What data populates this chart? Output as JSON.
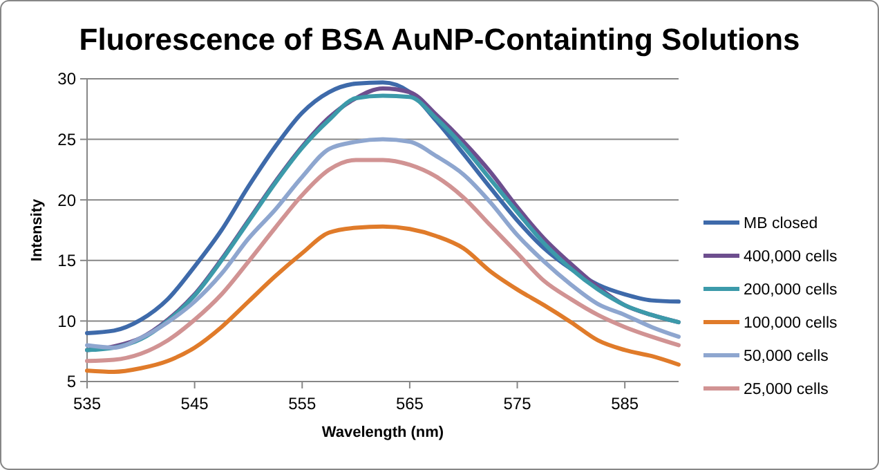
{
  "chart_data": {
    "type": "line",
    "title": "Fluorescence of BSA AuNP-Containting Solutions",
    "xlabel": "Wavelength (nm)",
    "ylabel": "Intensity",
    "x": [
      535,
      537.5,
      540,
      542.5,
      545,
      547.5,
      550,
      552.5,
      555,
      557.5,
      560,
      562.5,
      565,
      567.5,
      570,
      572.5,
      575,
      577.5,
      580,
      582.5,
      585,
      587.5,
      590
    ],
    "series": [
      {
        "name": "MB closed",
        "color": "#3e6aaa",
        "values": [
          9.0,
          9.2,
          10.1,
          11.8,
          14.5,
          17.5,
          21.1,
          24.4,
          27.2,
          28.9,
          29.6,
          29.7,
          28.9,
          26.5,
          23.8,
          21.0,
          18.3,
          16.0,
          14.3,
          13.0,
          12.2,
          11.7,
          11.6
        ]
      },
      {
        "name": "400,000 cells",
        "color": "#6d4e8e",
        "values": [
          7.6,
          7.9,
          8.6,
          10.1,
          12.2,
          15.1,
          18.3,
          21.5,
          24.4,
          26.8,
          28.4,
          29.2,
          28.9,
          27.0,
          24.8,
          22.3,
          19.4,
          16.8,
          14.7,
          12.8,
          11.3,
          10.5,
          9.9
        ]
      },
      {
        "name": "200,000 cells",
        "color": "#3c9aaa",
        "values": [
          7.6,
          7.8,
          8.5,
          10.0,
          12.1,
          15.0,
          18.2,
          21.4,
          24.3,
          26.6,
          28.4,
          28.6,
          28.5,
          26.7,
          24.4,
          21.7,
          19.0,
          16.4,
          14.3,
          12.6,
          11.3,
          10.5,
          9.9
        ]
      },
      {
        "name": "100,000 cells",
        "color": "#e07b2a",
        "values": [
          5.9,
          5.8,
          6.1,
          6.7,
          7.8,
          9.5,
          11.6,
          13.7,
          15.6,
          17.3,
          17.7,
          17.8,
          17.6,
          17.0,
          16.0,
          14.1,
          12.6,
          11.3,
          9.9,
          8.4,
          7.6,
          7.1,
          6.4
        ]
      },
      {
        "name": "50,000 cells",
        "color": "#8ea6cf",
        "values": [
          8.0,
          7.8,
          8.6,
          9.9,
          11.6,
          13.9,
          16.8,
          19.2,
          21.9,
          24.2,
          24.8,
          25.0,
          24.8,
          23.6,
          22.1,
          19.8,
          17.1,
          14.9,
          13.0,
          11.4,
          10.5,
          9.5,
          8.7
        ]
      },
      {
        "name": "25,000 cells",
        "color": "#d19393",
        "values": [
          6.7,
          6.8,
          7.3,
          8.4,
          10.1,
          12.2,
          14.9,
          17.7,
          20.4,
          22.5,
          23.3,
          23.3,
          22.9,
          21.9,
          20.2,
          17.9,
          15.6,
          13.3,
          11.8,
          10.5,
          9.5,
          8.7,
          8.0
        ]
      }
    ],
    "xlim": [
      535,
      590
    ],
    "xticks": [
      535,
      545,
      555,
      565,
      575,
      585
    ],
    "ylim": [
      5,
      30
    ],
    "yticks": [
      5,
      10,
      15,
      20,
      25,
      30
    ],
    "grid": "y",
    "legend": "right",
    "marker": "none",
    "line_style": "solid"
  }
}
